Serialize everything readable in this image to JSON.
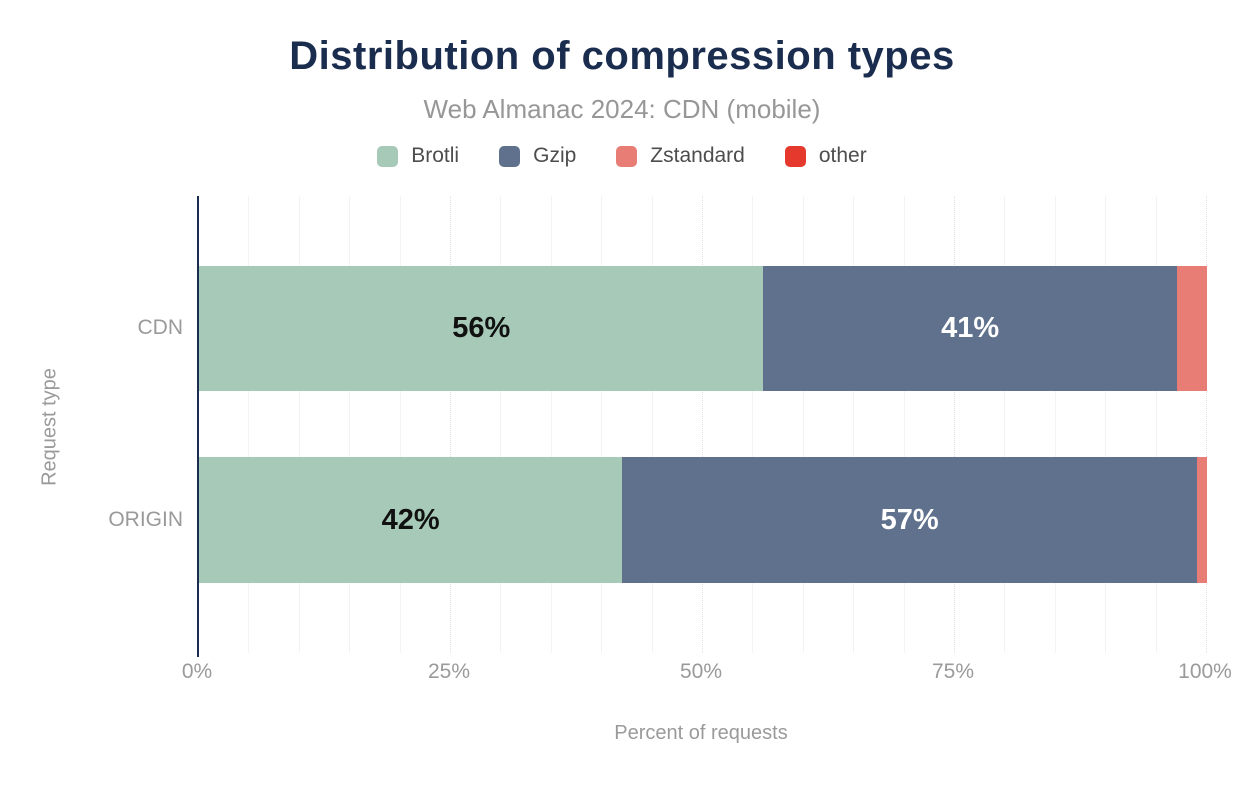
{
  "chart_data": {
    "type": "bar",
    "orientation": "horizontal",
    "stacked": true,
    "title": "Distribution of compression types",
    "subtitle": "Web Almanac 2024: CDN (mobile)",
    "xlabel": "Percent of requests",
    "ylabel": "Request type",
    "xlim": [
      0,
      100
    ],
    "grid": "vertical, every 5%, faint",
    "legend_position": "top",
    "categories": [
      "CDN",
      "ORIGIN"
    ],
    "series": [
      {
        "name": "Brotli",
        "color": "#a7cab8",
        "label_color": "#111111",
        "values": [
          56,
          42
        ],
        "labels": [
          "56%",
          "42%"
        ]
      },
      {
        "name": "Gzip",
        "color": "#5f718c",
        "label_color": "#ffffff",
        "values": [
          41,
          57
        ],
        "labels": [
          "41%",
          "57%"
        ]
      },
      {
        "name": "Zstandard",
        "color": "#e87d75",
        "label_color": "#111111",
        "values": [
          3,
          1
        ],
        "labels": [
          "",
          ""
        ]
      },
      {
        "name": "other",
        "color": "#e5392e",
        "label_color": "#ffffff",
        "values": [
          0,
          0
        ],
        "labels": [
          "",
          ""
        ]
      }
    ],
    "xticks": [
      {
        "label": "0%",
        "pos": 0
      },
      {
        "label": "25%",
        "pos": 25
      },
      {
        "label": "50%",
        "pos": 50
      },
      {
        "label": "75%",
        "pos": 75
      },
      {
        "label": "100%",
        "pos": 100
      }
    ],
    "colors": {
      "title_navy": "#1b2d4f",
      "axis_line_navy": "#1b2d4f",
      "axis_text_gray": "#9a9a9a",
      "subtitle_gray": "#979797",
      "legend_text_gray": "#4d4d4d",
      "gridline_minor": "#f3f3f3",
      "gridline_major": "#e0e0e0"
    }
  }
}
